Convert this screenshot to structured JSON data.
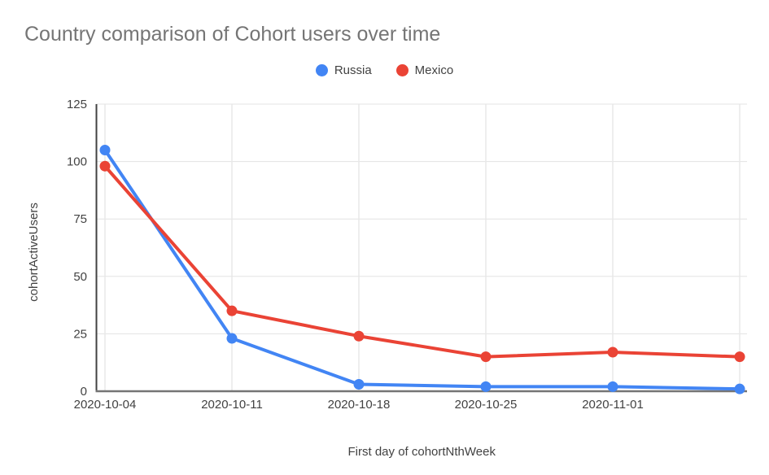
{
  "chart_data": {
    "type": "line",
    "title": "Country comparison of Cohort users over time",
    "xlabel": "First day of cohortNthWeek",
    "ylabel": "cohortActiveUsers",
    "categories": [
      "2020-10-04",
      "2020-10-11",
      "2020-10-18",
      "2020-10-25",
      "2020-11-01",
      ""
    ],
    "series": [
      {
        "name": "Russia",
        "color": "#4285F4",
        "values": [
          105,
          23,
          3,
          2,
          2,
          1
        ]
      },
      {
        "name": "Mexico",
        "color": "#EA4335",
        "values": [
          98,
          35,
          24,
          15,
          17,
          15
        ]
      }
    ],
    "ylim": [
      0,
      125
    ],
    "yticks": [
      0,
      25,
      50,
      75,
      100,
      125
    ],
    "grid": true,
    "legend_position": "top",
    "colors": {
      "title_text": "#757575",
      "axis_text": "#424242",
      "gridline": "#e3e3e3",
      "vertical_gridline": "#e8e8e8",
      "y_axis_line": "#424242",
      "x_baseline": "#757575",
      "background": "#ffffff"
    }
  }
}
